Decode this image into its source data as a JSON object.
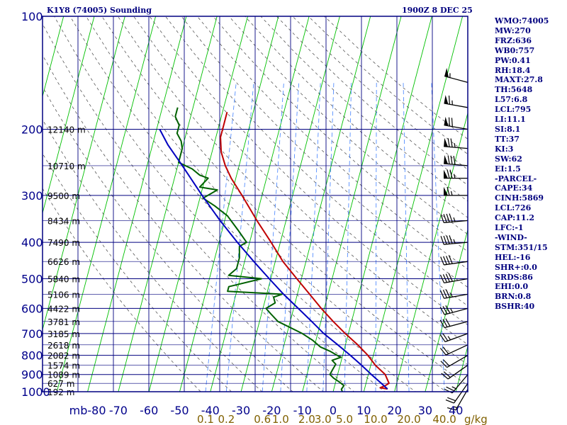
{
  "header": {
    "station": "K1Y8 (74005) Sounding",
    "time": "1900Z  8 DEC 25"
  },
  "stats": [
    "WMO:74005",
    "MW:270",
    "FRZ:636",
    "WB0:757",
    "PW:0.41",
    "RH:18.4",
    "MAXT:27.8",
    "TH:5648",
    "L57:6.8",
    "LCL:795",
    "LI:11.1",
    "SI:8.1",
    "TT:37",
    "KI:3",
    "SW:62",
    "EI:1.5",
    "-PARCEL-",
    "CAPE:34",
    "CINH:5869",
    "LCL:726",
    "CAP:11.2",
    "LFC:-1",
    "-WIND-",
    "STM:351/15",
    "HEL:-16",
    "SHR+:0.0",
    "SRDS:86",
    "EHI:0.0",
    "BRN:0.8",
    "BSHR:40"
  ],
  "colors": {
    "border": "#000080",
    "isobar": "#00007f",
    "temperature": "#c00000",
    "dewpoint": "#006000",
    "parcel": "#0000c0",
    "isotherm": "#00c000",
    "dry_adiabat": "#404040",
    "mixing_ratio": "#4080ff",
    "axis_text": "#00008b",
    "mixing_text": "#806000"
  },
  "chart_data": {
    "type": "line",
    "diagram": "skew-T log-p",
    "y_axis": {
      "unit": "mb",
      "scale": "log",
      "ticks": [
        100,
        200,
        300,
        400,
        500,
        600,
        700,
        800,
        900,
        1000
      ]
    },
    "x_axis": {
      "unit": "C",
      "ticks": [
        -80,
        -70,
        -60,
        -50,
        -40,
        -30,
        -20,
        -10,
        0,
        10,
        20,
        30,
        40
      ]
    },
    "x_axis_first_label": "mb-80",
    "mixing_ratio_labels": [
      "0.1",
      "0.2",
      "0.6",
      "1.0",
      "2.0",
      "3.0",
      "5.0",
      "10.0",
      "20.0",
      "40.0"
    ],
    "mixing_ratio_unit": "g/kg",
    "height_labels": [
      {
        "p": 200,
        "label": "12140 m"
      },
      {
        "p": 250,
        "label": "10710 m"
      },
      {
        "p": 300,
        "label": "9500 m"
      },
      {
        "p": 350,
        "label": "8434 m"
      },
      {
        "p": 400,
        "label": "7490 m"
      },
      {
        "p": 450,
        "label": "6626 m"
      },
      {
        "p": 500,
        "label": "5840 m"
      },
      {
        "p": 550,
        "label": "5106 m"
      },
      {
        "p": 600,
        "label": "4422 m"
      },
      {
        "p": 650,
        "label": "3781 m"
      },
      {
        "p": 700,
        "label": "3185 m"
      },
      {
        "p": 750,
        "label": "2618 m"
      },
      {
        "p": 800,
        "label": "2082 m"
      },
      {
        "p": 850,
        "label": "1574 m"
      },
      {
        "p": 900,
        "label": "1089 m"
      },
      {
        "p": 950,
        "label": "627 m"
      },
      {
        "p": 1000,
        "label": "192 m"
      }
    ],
    "series": [
      {
        "key": "temperature",
        "points": [
          [
            983,
            17.5
          ],
          [
            976,
            15
          ],
          [
            963,
            16.5
          ],
          [
            950,
            17.5
          ],
          [
            900,
            15.5
          ],
          [
            850,
            11.5
          ],
          [
            800,
            8.2
          ],
          [
            750,
            4
          ],
          [
            700,
            -1
          ],
          [
            650,
            -6
          ],
          [
            600,
            -11
          ],
          [
            550,
            -16
          ],
          [
            500,
            -21.5
          ],
          [
            450,
            -27.5
          ],
          [
            400,
            -33
          ],
          [
            350,
            -39.5
          ],
          [
            300,
            -46.5
          ],
          [
            270,
            -51.5
          ],
          [
            250,
            -54.5
          ],
          [
            230,
            -57
          ],
          [
            210,
            -58.5
          ],
          [
            195,
            -58.5
          ],
          [
            180,
            -58.5
          ]
        ]
      },
      {
        "key": "dewpoint",
        "points": [
          [
            1000,
            3
          ],
          [
            985,
            2.5
          ],
          [
            963,
            3
          ],
          [
            940,
            1
          ],
          [
            920,
            -1
          ],
          [
            900,
            -2.5
          ],
          [
            870,
            -2
          ],
          [
            845,
            -1.5
          ],
          [
            825,
            -3
          ],
          [
            810,
            -0.5
          ],
          [
            780,
            -4.5
          ],
          [
            760,
            -8
          ],
          [
            730,
            -11
          ],
          [
            700,
            -15
          ],
          [
            650,
            -24
          ],
          [
            620,
            -27
          ],
          [
            600,
            -29
          ],
          [
            580,
            -26.5
          ],
          [
            560,
            -27.5
          ],
          [
            550,
            -25
          ],
          [
            540,
            -43
          ],
          [
            525,
            -43
          ],
          [
            500,
            -33
          ],
          [
            490,
            -44
          ],
          [
            470,
            -42
          ],
          [
            440,
            -42
          ],
          [
            410,
            -43
          ],
          [
            400,
            -41
          ],
          [
            370,
            -45
          ],
          [
            340,
            -49.5
          ],
          [
            320,
            -54.5
          ],
          [
            305,
            -59
          ],
          [
            290,
            -55
          ],
          [
            285,
            -61
          ],
          [
            270,
            -59
          ],
          [
            265,
            -62
          ],
          [
            255,
            -65
          ],
          [
            245,
            -70
          ],
          [
            225,
            -70
          ],
          [
            215,
            -71
          ],
          [
            205,
            -73
          ],
          [
            195,
            -73
          ],
          [
            185,
            -75
          ],
          [
            175,
            -75
          ]
        ]
      },
      {
        "key": "parcel",
        "points": [
          [
            983,
            17.5
          ],
          [
            950,
            15
          ],
          [
            900,
            11
          ],
          [
            850,
            7
          ],
          [
            800,
            2.5
          ],
          [
            750,
            -2.5
          ],
          [
            700,
            -8
          ],
          [
            650,
            -13
          ],
          [
            600,
            -18.5
          ],
          [
            550,
            -24.5
          ],
          [
            500,
            -30.5
          ],
          [
            450,
            -37
          ],
          [
            400,
            -44
          ],
          [
            350,
            -51.5
          ],
          [
            300,
            -59.5
          ],
          [
            250,
            -68.5
          ],
          [
            220,
            -75
          ],
          [
            200,
            -79
          ]
        ]
      }
    ],
    "wind_barbs": [
      {
        "p": 985,
        "dir": 210,
        "kt": 15
      },
      {
        "p": 950,
        "dir": 215,
        "kt": 20
      },
      {
        "p": 900,
        "dir": 220,
        "kt": 25
      },
      {
        "p": 850,
        "dir": 235,
        "kt": 20
      },
      {
        "p": 800,
        "dir": 240,
        "kt": 20
      },
      {
        "p": 750,
        "dir": 245,
        "kt": 20
      },
      {
        "p": 700,
        "dir": 250,
        "kt": 25
      },
      {
        "p": 650,
        "dir": 255,
        "kt": 30
      },
      {
        "p": 600,
        "dir": 255,
        "kt": 35
      },
      {
        "p": 550,
        "dir": 260,
        "kt": 35
      },
      {
        "p": 500,
        "dir": 260,
        "kt": 40
      },
      {
        "p": 450,
        "dir": 262,
        "kt": 40
      },
      {
        "p": 400,
        "dir": 265,
        "kt": 45
      },
      {
        "p": 350,
        "dir": 265,
        "kt": 45
      },
      {
        "p": 300,
        "dir": 270,
        "kt": 65
      },
      {
        "p": 270,
        "dir": 270,
        "kt": 75
      },
      {
        "p": 250,
        "dir": 275,
        "kt": 80
      },
      {
        "p": 225,
        "dir": 275,
        "kt": 75
      },
      {
        "p": 200,
        "dir": 280,
        "kt": 70
      },
      {
        "p": 175,
        "dir": 280,
        "kt": 65
      },
      {
        "p": 150,
        "dir": 285,
        "kt": 55
      }
    ]
  }
}
